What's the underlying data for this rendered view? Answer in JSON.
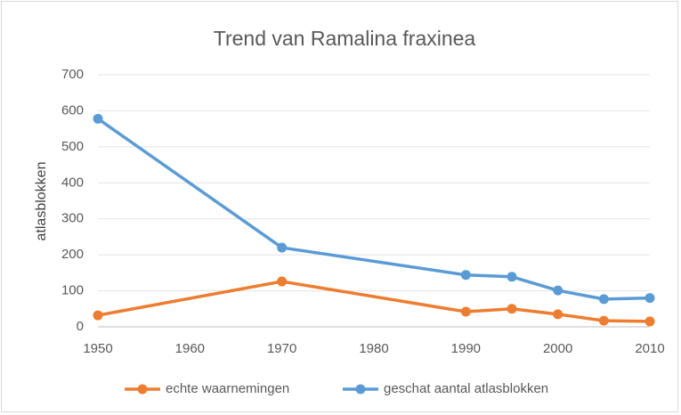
{
  "chart_data": {
    "type": "line",
    "title": "Trend van Ramalina fraxinea",
    "ylabel": "atlasblokken",
    "x": [
      1950,
      1970,
      1990,
      1995,
      2000,
      2005,
      2010
    ],
    "series": [
      {
        "name": "echte waarnemingen",
        "color": "#ed7d31",
        "values": [
          32,
          126,
          42,
          50,
          35,
          17,
          15
        ]
      },
      {
        "name": "geschat aantal atlasblokken",
        "color": "#5b9bd5",
        "values": [
          578,
          220,
          144,
          139,
          101,
          77,
          80
        ]
      }
    ],
    "xlim": [
      1950,
      2010
    ],
    "xticks": [
      1950,
      1960,
      1970,
      1980,
      1990,
      2000,
      2010
    ],
    "ylim": [
      0,
      700
    ],
    "yticks": [
      0,
      100,
      200,
      300,
      400,
      500,
      600,
      700
    ],
    "grid": true,
    "legend": "bottom"
  }
}
